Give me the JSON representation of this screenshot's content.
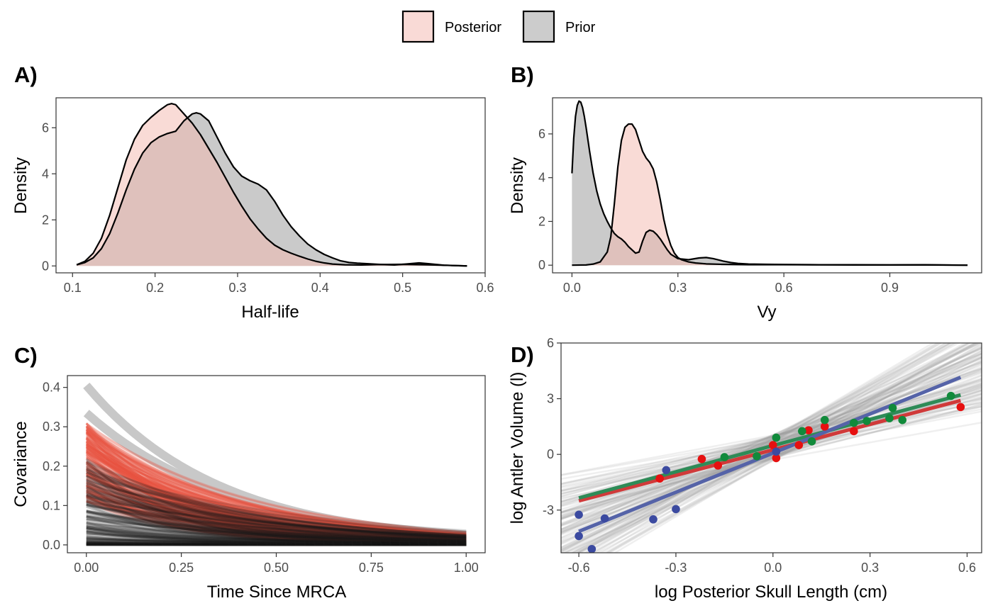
{
  "legend": {
    "items": [
      {
        "label": "Posterior",
        "fill": "#f9dad6"
      },
      {
        "label": "Prior",
        "fill": "#cccccc"
      }
    ]
  },
  "colors": {
    "posterior_fill": "#f4b7ad",
    "prior_fill": "#a6a6a6",
    "outline": "#000000",
    "cov_prior_upper": "#c8c8c8",
    "cov_post": "#e8503f",
    "cov_prior": "#1a1a1a",
    "regime_red": "#e61010",
    "regime_green": "#118a3b",
    "regime_blue": "#3b4aa0",
    "fit_red": "#d03a3a",
    "fit_green": "#2e8b57",
    "fit_blue": "#5563a8"
  },
  "chart_data": [
    {
      "panel": "A)",
      "type": "area",
      "xlabel": "Half-life",
      "ylabel": "Density",
      "xlim": [
        0.08,
        0.6
      ],
      "ylim": [
        -0.3,
        7.3
      ],
      "xticks": [
        "0.1",
        "0.2",
        "0.3",
        "0.4",
        "0.5",
        "0.6"
      ],
      "yticks": [
        "0",
        "2",
        "4",
        "6"
      ],
      "series": [
        {
          "name": "Posterior",
          "x": [
            0.105,
            0.115,
            0.125,
            0.135,
            0.145,
            0.155,
            0.165,
            0.175,
            0.185,
            0.195,
            0.205,
            0.215,
            0.22,
            0.225,
            0.235,
            0.245,
            0.255,
            0.265,
            0.275,
            0.285,
            0.295,
            0.305,
            0.315,
            0.325,
            0.335,
            0.345,
            0.355,
            0.365,
            0.375,
            0.385,
            0.395,
            0.405,
            0.415,
            0.43,
            0.45,
            0.47,
            0.5,
            0.53,
            0.56,
            0.578
          ],
          "y": [
            0.05,
            0.2,
            0.55,
            1.2,
            2.2,
            3.4,
            4.6,
            5.5,
            6.1,
            6.45,
            6.75,
            7.0,
            7.05,
            7.0,
            6.6,
            6.2,
            5.7,
            5.1,
            4.5,
            3.85,
            3.2,
            2.6,
            2.05,
            1.6,
            1.2,
            0.9,
            0.7,
            0.55,
            0.42,
            0.3,
            0.2,
            0.13,
            0.08,
            0.05,
            0.04,
            0.06,
            0.07,
            0.05,
            0.02,
            0.0
          ]
        },
        {
          "name": "Prior",
          "x": [
            0.105,
            0.115,
            0.125,
            0.135,
            0.145,
            0.155,
            0.165,
            0.175,
            0.185,
            0.195,
            0.205,
            0.215,
            0.225,
            0.235,
            0.245,
            0.25,
            0.255,
            0.265,
            0.275,
            0.285,
            0.295,
            0.305,
            0.315,
            0.325,
            0.335,
            0.345,
            0.355,
            0.365,
            0.375,
            0.385,
            0.395,
            0.405,
            0.415,
            0.425,
            0.435,
            0.445,
            0.455,
            0.47,
            0.49,
            0.51,
            0.52,
            0.53,
            0.55,
            0.578
          ],
          "y": [
            0.05,
            0.15,
            0.35,
            0.75,
            1.4,
            2.3,
            3.3,
            4.2,
            4.9,
            5.35,
            5.6,
            5.75,
            5.85,
            6.3,
            6.6,
            6.65,
            6.6,
            6.3,
            5.6,
            4.9,
            4.3,
            3.9,
            3.7,
            3.55,
            3.3,
            2.8,
            2.2,
            1.7,
            1.3,
            0.95,
            0.7,
            0.5,
            0.35,
            0.22,
            0.15,
            0.12,
            0.1,
            0.07,
            0.04,
            0.1,
            0.13,
            0.1,
            0.03,
            0.0
          ]
        }
      ]
    },
    {
      "panel": "B)",
      "type": "area",
      "xlabel": "Vy",
      "ylabel": "Density",
      "xlim": [
        -0.055,
        1.16
      ],
      "ylim": [
        -0.35,
        7.65
      ],
      "xticks": [
        "0.0",
        "0.3",
        "0.6",
        "0.9"
      ],
      "yticks": [
        "0",
        "2",
        "4",
        "6"
      ],
      "series": [
        {
          "name": "Posterior",
          "x": [
            0.0,
            0.04,
            0.06,
            0.08,
            0.1,
            0.11,
            0.12,
            0.13,
            0.14,
            0.15,
            0.16,
            0.17,
            0.18,
            0.19,
            0.2,
            0.21,
            0.22,
            0.23,
            0.24,
            0.25,
            0.26,
            0.27,
            0.28,
            0.29,
            0.3,
            0.31,
            0.33,
            0.35,
            0.38,
            0.42,
            0.46,
            0.5,
            0.6,
            0.8,
            1.0,
            1.12
          ],
          "y": [
            0.0,
            0.01,
            0.05,
            0.15,
            0.6,
            1.3,
            2.8,
            4.5,
            5.7,
            6.3,
            6.45,
            6.45,
            6.2,
            5.7,
            5.2,
            4.9,
            4.7,
            4.4,
            3.8,
            3.0,
            2.1,
            1.4,
            0.9,
            0.55,
            0.35,
            0.25,
            0.15,
            0.1,
            0.06,
            0.04,
            0.03,
            0.02,
            0.02,
            0.01,
            0.01,
            0.0
          ]
        },
        {
          "name": "Prior",
          "x": [
            0.0,
            0.005,
            0.01,
            0.015,
            0.02,
            0.025,
            0.03,
            0.035,
            0.04,
            0.05,
            0.06,
            0.07,
            0.08,
            0.09,
            0.1,
            0.11,
            0.12,
            0.13,
            0.14,
            0.15,
            0.16,
            0.17,
            0.18,
            0.19,
            0.2,
            0.21,
            0.22,
            0.23,
            0.24,
            0.25,
            0.26,
            0.27,
            0.28,
            0.3,
            0.33,
            0.36,
            0.38,
            0.4,
            0.43,
            0.45,
            0.47,
            0.5,
            0.55,
            0.6,
            0.7,
            0.8,
            0.9,
            1.0,
            1.05,
            1.12
          ],
          "y": [
            4.2,
            5.8,
            6.8,
            7.3,
            7.5,
            7.45,
            7.2,
            6.8,
            6.3,
            5.2,
            4.2,
            3.4,
            2.8,
            2.35,
            2.0,
            1.7,
            1.45,
            1.3,
            1.2,
            1.05,
            0.85,
            0.7,
            0.55,
            0.6,
            1.1,
            1.5,
            1.6,
            1.55,
            1.4,
            1.2,
            0.95,
            0.7,
            0.5,
            0.3,
            0.25,
            0.33,
            0.35,
            0.3,
            0.18,
            0.12,
            0.08,
            0.05,
            0.04,
            0.03,
            0.02,
            0.02,
            0.01,
            0.02,
            0.01,
            0.0
          ]
        }
      ]
    },
    {
      "panel": "C)",
      "type": "line",
      "xlabel": "Time Since MRCA",
      "ylabel": "Covariance",
      "xlim": [
        -0.05,
        1.05
      ],
      "ylim": [
        -0.02,
        0.43
      ],
      "xticks": [
        "0.00",
        "0.25",
        "0.50",
        "0.75",
        "1.00"
      ],
      "yticks": [
        "0.0",
        "0.1",
        "0.2",
        "0.3",
        "0.4"
      ],
      "upper_prior_curves": [
        {
          "v0": 0.405,
          "half_life": 0.245
        },
        {
          "v0": 0.335,
          "half_life": 0.27
        }
      ],
      "posterior_curves": {
        "v0_range": [
          0.11,
          0.31
        ],
        "half_life_range": [
          0.16,
          0.31
        ],
        "count": 220
      },
      "prior_curves": {
        "v0_range": [
          0.0,
          0.22
        ],
        "half_life_range": [
          0.14,
          0.42
        ],
        "count": 200
      }
    },
    {
      "panel": "D)",
      "type": "scatter",
      "xlabel": "log Posterior Skull Length (cm)",
      "ylabel": "log Antler Volume (l)",
      "xlim": [
        -0.655,
        0.645
      ],
      "ylim": [
        -5.3,
        6.0
      ],
      "xticks": [
        "-0.6",
        "-0.3",
        "0.0",
        "0.3",
        "0.6"
      ],
      "yticks": [
        "-3",
        "0",
        "3",
        "6"
      ],
      "points": {
        "red": [
          [
            -0.35,
            -1.3
          ],
          [
            -0.22,
            -0.25
          ],
          [
            -0.17,
            -0.6
          ],
          [
            0.0,
            0.5
          ],
          [
            0.01,
            -0.2
          ],
          [
            0.08,
            0.5
          ],
          [
            0.11,
            1.3
          ],
          [
            0.16,
            1.5
          ],
          [
            0.25,
            1.25
          ],
          [
            0.58,
            2.55
          ]
        ],
        "green": [
          [
            -0.15,
            -0.15
          ],
          [
            -0.05,
            -0.1
          ],
          [
            0.01,
            0.9
          ],
          [
            0.09,
            1.25
          ],
          [
            0.12,
            0.7
          ],
          [
            0.16,
            1.85
          ],
          [
            0.25,
            1.7
          ],
          [
            0.29,
            1.8
          ],
          [
            0.36,
            1.95
          ],
          [
            0.37,
            2.5
          ],
          [
            0.4,
            1.85
          ],
          [
            0.55,
            3.15
          ]
        ],
        "blue": [
          [
            -0.6,
            -3.25
          ],
          [
            -0.6,
            -4.4
          ],
          [
            -0.56,
            -5.1
          ],
          [
            -0.52,
            -3.45
          ],
          [
            -0.37,
            -3.5
          ],
          [
            -0.3,
            -2.95
          ],
          [
            -0.33,
            -0.85
          ],
          [
            0.01,
            0.15
          ]
        ]
      },
      "fits": {
        "red": {
          "x": [
            -0.6,
            0.58
          ],
          "y": [
            -2.5,
            2.9
          ]
        },
        "green": {
          "x": [
            -0.6,
            0.58
          ],
          "y": [
            -2.35,
            3.2
          ]
        },
        "blue": {
          "x": [
            -0.6,
            0.58
          ],
          "y": [
            -4.15,
            4.15
          ]
        }
      },
      "grey_lines": {
        "count": 110,
        "pivot": [
          0.0,
          0.35
        ],
        "slope_range": [
          3.0,
          10.5
        ]
      }
    }
  ]
}
